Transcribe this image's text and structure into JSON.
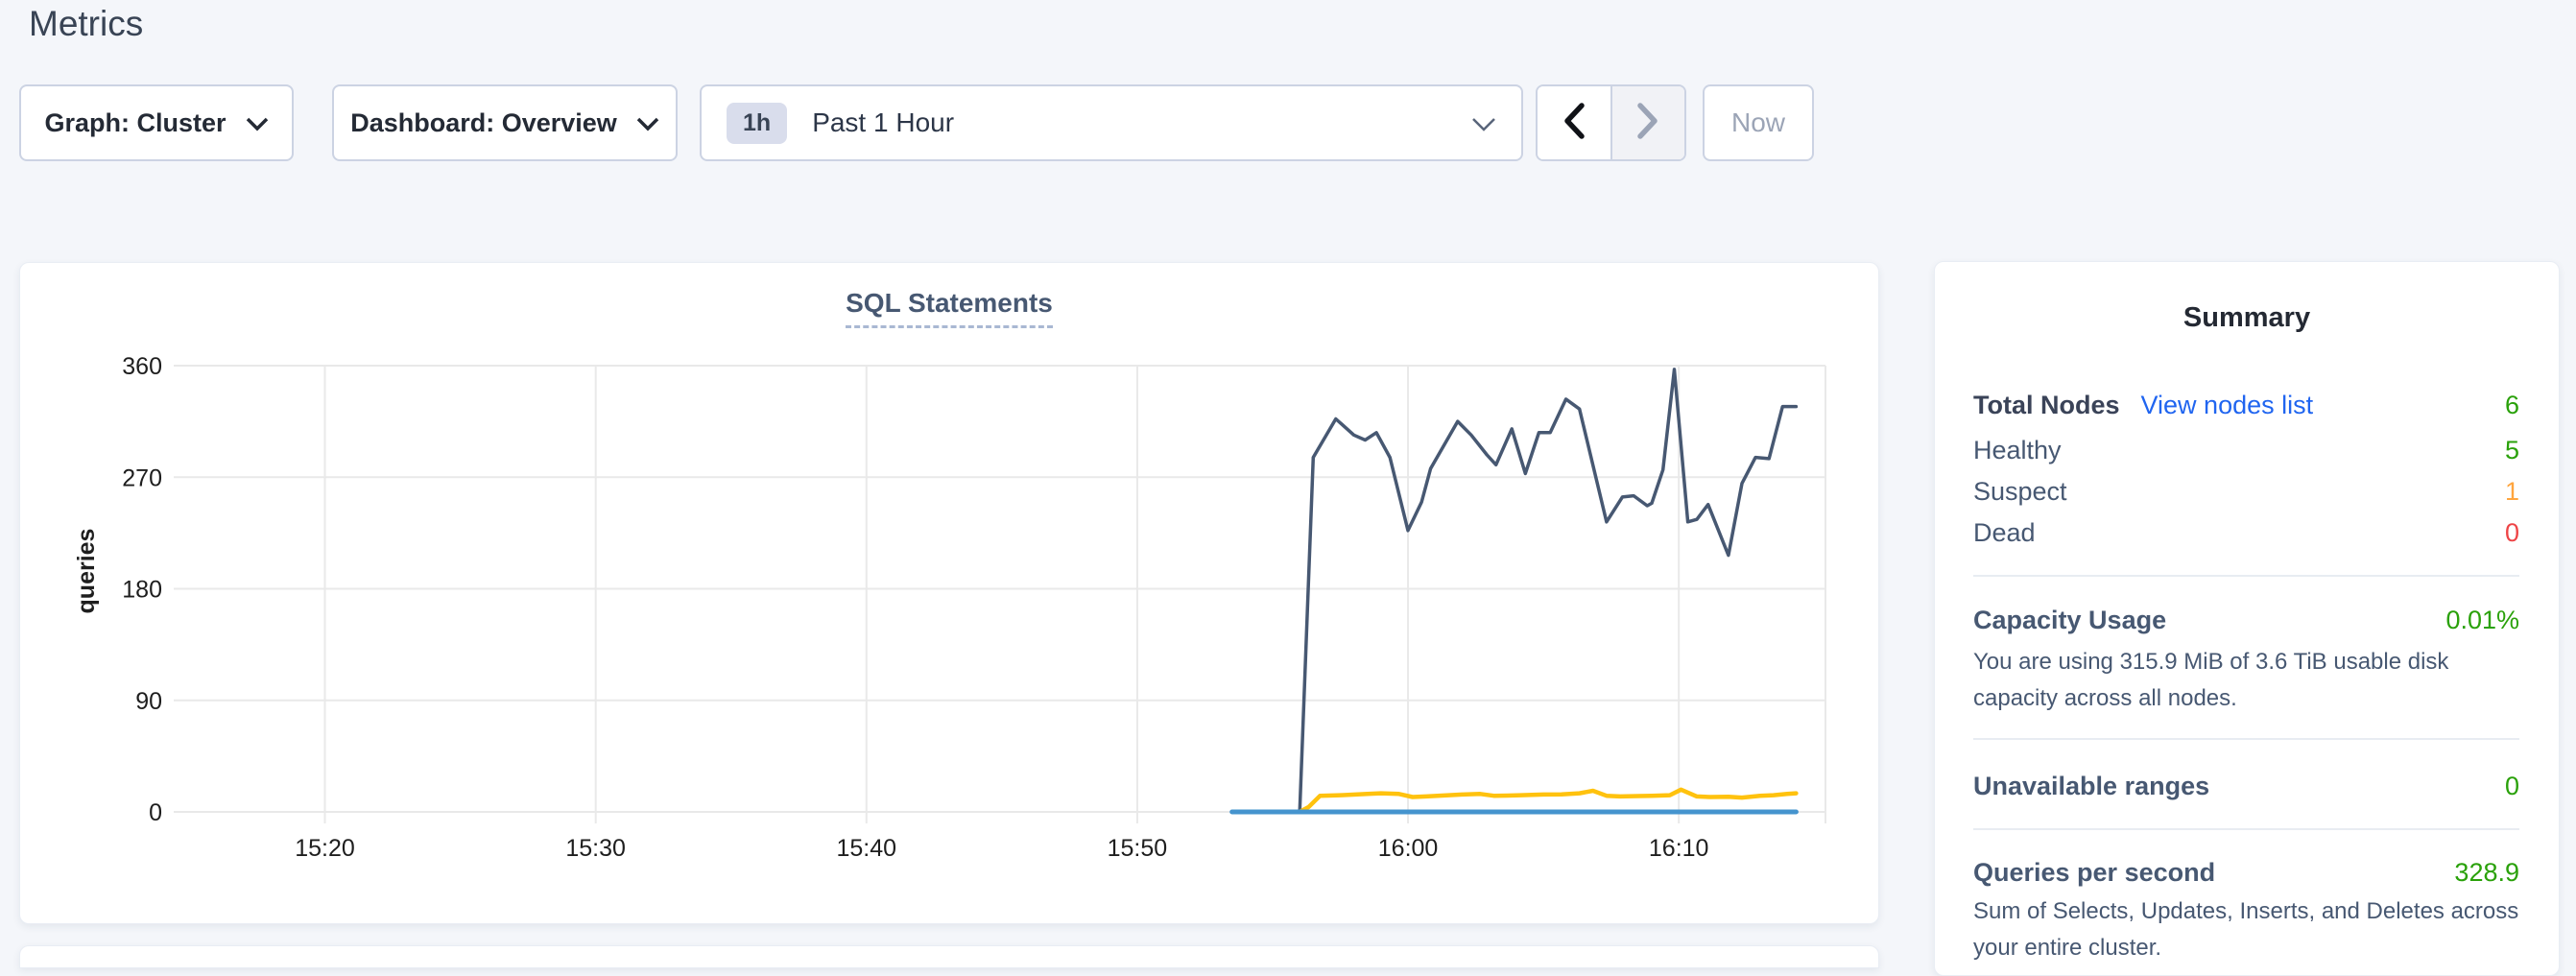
{
  "page": {
    "title": "Metrics"
  },
  "toolbar": {
    "graph_dropdown_label": "Graph: Cluster",
    "dashboard_dropdown_label": "Dashboard: Overview",
    "time_badge": "1h",
    "time_label": "Past 1 Hour",
    "now_label": "Now"
  },
  "chart_data": {
    "type": "line",
    "title": "SQL Statements",
    "xlabel": "",
    "ylabel": "queries",
    "ylim": [
      0,
      360
    ],
    "y_ticks": [
      0,
      90,
      180,
      270,
      360
    ],
    "x_ticks": [
      "15:20",
      "15:30",
      "15:40",
      "15:50",
      "16:00",
      "16:10"
    ],
    "x_range": [
      "15:14:25",
      "16:15:25"
    ],
    "grid": true,
    "grid_color": "#e9e9e9",
    "legend": "none",
    "series": [
      {
        "name": "series-1-dark-blue",
        "color": "#475872",
        "stroke_width": 3.5,
        "points": [
          [
            "15:56:00",
            0
          ],
          [
            "15:56:30",
            286
          ],
          [
            "15:57:20",
            317
          ],
          [
            "15:58:00",
            304
          ],
          [
            "15:58:25",
            300
          ],
          [
            "15:58:50",
            306
          ],
          [
            "15:59:20",
            286
          ],
          [
            "16:00:00",
            227
          ],
          [
            "16:00:30",
            250
          ],
          [
            "16:00:50",
            277
          ],
          [
            "16:01:50",
            315
          ],
          [
            "16:02:20",
            304
          ],
          [
            "16:02:55",
            288
          ],
          [
            "16:03:15",
            280
          ],
          [
            "16:03:50",
            309
          ],
          [
            "16:04:20",
            273
          ],
          [
            "16:04:50",
            306
          ],
          [
            "16:05:15",
            306
          ],
          [
            "16:05:50",
            333
          ],
          [
            "16:06:20",
            325
          ],
          [
            "16:07:20",
            234
          ],
          [
            "16:07:55",
            254
          ],
          [
            "16:08:20",
            255
          ],
          [
            "16:08:50",
            247
          ],
          [
            "16:09:00",
            249
          ],
          [
            "16:09:25",
            276
          ],
          [
            "16:09:50",
            357
          ],
          [
            "16:10:20",
            234
          ],
          [
            "16:10:40",
            236
          ],
          [
            "16:11:05",
            248
          ],
          [
            "16:11:50",
            207
          ],
          [
            "16:12:20",
            265
          ],
          [
            "16:12:30",
            272
          ],
          [
            "16:12:50",
            286
          ],
          [
            "16:13:20",
            285
          ],
          [
            "16:13:50",
            327
          ],
          [
            "16:14:20",
            327
          ]
        ]
      },
      {
        "name": "series-2-yellow",
        "color": "#ffc20e",
        "stroke_width": 4.5,
        "points": [
          [
            "15:56:00",
            0
          ],
          [
            "15:56:20",
            4
          ],
          [
            "15:56:45",
            13
          ],
          [
            "15:57:30",
            13.5
          ],
          [
            "15:58:30",
            14.5
          ],
          [
            "15:59:00",
            15
          ],
          [
            "15:59:40",
            14.5
          ],
          [
            "16:00:10",
            12
          ],
          [
            "16:00:40",
            12.5
          ],
          [
            "16:01:30",
            13.5
          ],
          [
            "16:02:00",
            14
          ],
          [
            "16:02:40",
            14.5
          ],
          [
            "16:03:10",
            13
          ],
          [
            "16:03:40",
            13.2
          ],
          [
            "16:04:10",
            13.5
          ],
          [
            "16:05:00",
            14
          ],
          [
            "16:05:40",
            14.2
          ],
          [
            "16:06:20",
            15
          ],
          [
            "16:06:50",
            17
          ],
          [
            "16:07:20",
            13
          ],
          [
            "16:07:50",
            12.5
          ],
          [
            "16:08:30",
            12.8
          ],
          [
            "16:09:00",
            13
          ],
          [
            "16:09:40",
            13.5
          ],
          [
            "16:10:05",
            18
          ],
          [
            "16:10:40",
            12.5
          ],
          [
            "16:11:10",
            12
          ],
          [
            "16:11:50",
            12.2
          ],
          [
            "16:12:20",
            11.5
          ],
          [
            "16:13:00",
            13
          ],
          [
            "16:13:30",
            13.5
          ],
          [
            "16:14:00",
            14.5
          ],
          [
            "16:14:20",
            15
          ]
        ]
      },
      {
        "name": "series-3-blue",
        "color": "#4594ce",
        "stroke_width": 5,
        "points": [
          [
            "15:53:30",
            0
          ],
          [
            "16:14:20",
            0
          ]
        ]
      }
    ]
  },
  "summary": {
    "title": "Summary",
    "total_nodes_label": "Total Nodes",
    "view_nodes_link": "View nodes list",
    "total_nodes_value": "6",
    "healthy_label": "Healthy",
    "healthy_value": "5",
    "suspect_label": "Suspect",
    "suspect_value": "1",
    "dead_label": "Dead",
    "dead_value": "0",
    "capacity_label": "Capacity Usage",
    "capacity_value": "0.01%",
    "capacity_desc": "You are using 315.9 MiB of 3.6 TiB usable disk capacity across all nodes.",
    "unavailable_label": "Unavailable ranges",
    "unavailable_value": "0",
    "qps_label": "Queries per second",
    "qps_value": "328.9",
    "qps_desc": "Sum of Selects, Updates, Inserts, and Deletes across your entire cluster."
  },
  "colors": {
    "page_background": "#f4f6fa",
    "link_blue": "#2065f0",
    "healthy_green": "#2aa10a",
    "suspect_orange": "#ffa53e",
    "dead_red": "#ee4446",
    "heading_dark": "#394455",
    "slate_text": "#475872"
  }
}
